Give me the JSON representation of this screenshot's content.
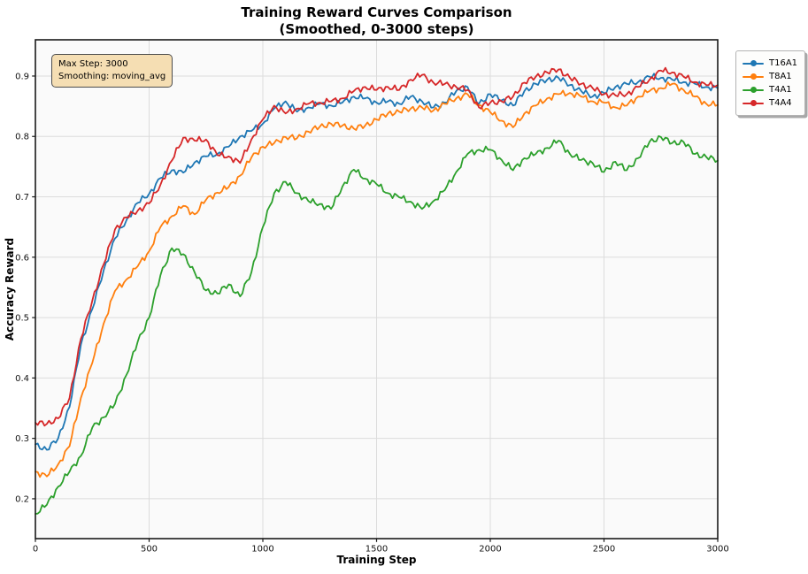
{
  "title": {
    "line1": "Training Reward Curves Comparison",
    "line2": "(Smoothed, 0-3000 steps)"
  },
  "annotation": {
    "line1": "Max Step: 3000",
    "line2": "Smoothing: moving_avg",
    "bg_color": "#f5deb3",
    "border_color": "#4d4d4d"
  },
  "axes": {
    "xlabel": "Training Step",
    "ylabel": "Accuracy Reward",
    "x_ticks": [
      0,
      500,
      1000,
      1500,
      2000,
      2500,
      3000
    ],
    "y_ticks": [
      0.2,
      0.3,
      0.4,
      0.5,
      0.6,
      0.7,
      0.8,
      0.9
    ]
  },
  "style": {
    "plot_bg": "#fafafa",
    "grid_color": "#dcdcdc",
    "spine_color": "#1a1a1a",
    "tick_color": "#1a1a1a",
    "tick_label_color": "#111111",
    "line_width": 1.8,
    "noise_amplitude": 0.006,
    "upsample": 5
  },
  "legend": {
    "position": "upper right, outside plot",
    "swatch": "line-with-dot-marker"
  },
  "chart_data": {
    "type": "line",
    "title": "Training Reward Curves Comparison (Smoothed, 0-3000 steps)",
    "xlabel": "Training Step",
    "ylabel": "Accuracy Reward",
    "xlim": [
      0,
      3000
    ],
    "ylim": [
      0.134,
      0.96
    ],
    "grid": true,
    "legend_position": "upper right outside",
    "x": [
      0,
      50,
      100,
      150,
      200,
      250,
      300,
      350,
      400,
      450,
      500,
      550,
      600,
      650,
      700,
      750,
      800,
      850,
      900,
      950,
      1000,
      1050,
      1100,
      1150,
      1200,
      1250,
      1300,
      1350,
      1400,
      1450,
      1500,
      1550,
      1600,
      1650,
      1700,
      1750,
      1800,
      1850,
      1900,
      1950,
      2000,
      2050,
      2100,
      2150,
      2200,
      2250,
      2300,
      2350,
      2400,
      2450,
      2500,
      2550,
      2600,
      2650,
      2700,
      2750,
      2800,
      2850,
      2900,
      2950,
      3000
    ],
    "series": [
      {
        "name": "T16A1",
        "color": "#1f77b4",
        "values": [
          0.29,
          0.281,
          0.3,
          0.352,
          0.455,
          0.514,
          0.578,
          0.631,
          0.661,
          0.69,
          0.705,
          0.731,
          0.744,
          0.74,
          0.757,
          0.767,
          0.771,
          0.783,
          0.8,
          0.809,
          0.821,
          0.846,
          0.858,
          0.841,
          0.848,
          0.854,
          0.851,
          0.856,
          0.866,
          0.863,
          0.856,
          0.858,
          0.854,
          0.866,
          0.858,
          0.848,
          0.856,
          0.875,
          0.882,
          0.854,
          0.87,
          0.86,
          0.851,
          0.875,
          0.887,
          0.894,
          0.897,
          0.885,
          0.875,
          0.866,
          0.872,
          0.882,
          0.887,
          0.89,
          0.899,
          0.897,
          0.894,
          0.89,
          0.887,
          0.882,
          0.88
        ]
      },
      {
        "name": "T8A1",
        "color": "#ff7f0e",
        "values": [
          0.245,
          0.237,
          0.257,
          0.287,
          0.367,
          0.425,
          0.49,
          0.544,
          0.563,
          0.585,
          0.61,
          0.65,
          0.668,
          0.685,
          0.671,
          0.695,
          0.707,
          0.716,
          0.735,
          0.765,
          0.783,
          0.789,
          0.799,
          0.797,
          0.808,
          0.816,
          0.821,
          0.818,
          0.813,
          0.818,
          0.828,
          0.838,
          0.841,
          0.846,
          0.848,
          0.843,
          0.854,
          0.863,
          0.87,
          0.852,
          0.84,
          0.826,
          0.815,
          0.838,
          0.851,
          0.863,
          0.87,
          0.872,
          0.866,
          0.858,
          0.856,
          0.848,
          0.851,
          0.866,
          0.875,
          0.88,
          0.887,
          0.877,
          0.866,
          0.854,
          0.852
        ]
      },
      {
        "name": "T4A1",
        "color": "#2ca02c",
        "values": [
          0.175,
          0.19,
          0.22,
          0.245,
          0.271,
          0.318,
          0.335,
          0.357,
          0.405,
          0.46,
          0.5,
          0.57,
          0.615,
          0.605,
          0.575,
          0.545,
          0.54,
          0.555,
          0.535,
          0.575,
          0.65,
          0.706,
          0.725,
          0.706,
          0.693,
          0.688,
          0.68,
          0.717,
          0.745,
          0.73,
          0.721,
          0.706,
          0.699,
          0.692,
          0.68,
          0.693,
          0.711,
          0.741,
          0.771,
          0.778,
          0.778,
          0.761,
          0.744,
          0.764,
          0.771,
          0.781,
          0.793,
          0.771,
          0.761,
          0.756,
          0.741,
          0.758,
          0.744,
          0.764,
          0.791,
          0.799,
          0.789,
          0.791,
          0.771,
          0.766,
          0.76
        ]
      },
      {
        "name": "T4A4",
        "color": "#d62728",
        "values": [
          0.326,
          0.324,
          0.333,
          0.367,
          0.465,
          0.528,
          0.588,
          0.646,
          0.666,
          0.677,
          0.689,
          0.72,
          0.76,
          0.798,
          0.793,
          0.795,
          0.769,
          0.767,
          0.756,
          0.795,
          0.828,
          0.851,
          0.838,
          0.846,
          0.854,
          0.856,
          0.858,
          0.863,
          0.875,
          0.882,
          0.877,
          0.882,
          0.877,
          0.894,
          0.902,
          0.889,
          0.887,
          0.882,
          0.877,
          0.848,
          0.856,
          0.858,
          0.866,
          0.889,
          0.899,
          0.906,
          0.911,
          0.897,
          0.887,
          0.88,
          0.87,
          0.868,
          0.87,
          0.882,
          0.894,
          0.909,
          0.906,
          0.899,
          0.89,
          0.885,
          0.885
        ]
      }
    ]
  }
}
